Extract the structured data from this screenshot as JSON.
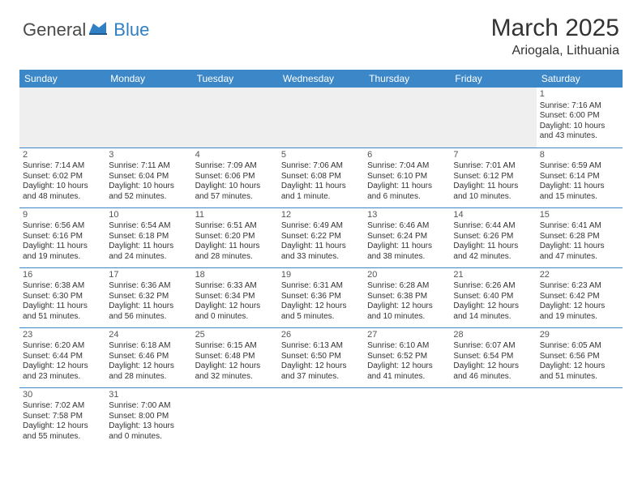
{
  "logo": {
    "general": "General",
    "blue": "Blue"
  },
  "title": "March 2025",
  "location": "Ariogala, Lithuania",
  "colors": {
    "header_bg": "#3b87c8",
    "header_text": "#ffffff",
    "blank_bg": "#efefef",
    "border": "#3b87c8",
    "logo_blue": "#2f7fc5",
    "text": "#333333"
  },
  "weekdays": [
    "Sunday",
    "Monday",
    "Tuesday",
    "Wednesday",
    "Thursday",
    "Friday",
    "Saturday"
  ],
  "weeks": [
    [
      {
        "blank": true
      },
      {
        "blank": true
      },
      {
        "blank": true
      },
      {
        "blank": true
      },
      {
        "blank": true
      },
      {
        "blank": true
      },
      {
        "day": "1",
        "sunrise": "Sunrise: 7:16 AM",
        "sunset": "Sunset: 6:00 PM",
        "daylight": "Daylight: 10 hours and 43 minutes."
      }
    ],
    [
      {
        "day": "2",
        "sunrise": "Sunrise: 7:14 AM",
        "sunset": "Sunset: 6:02 PM",
        "daylight": "Daylight: 10 hours and 48 minutes."
      },
      {
        "day": "3",
        "sunrise": "Sunrise: 7:11 AM",
        "sunset": "Sunset: 6:04 PM",
        "daylight": "Daylight: 10 hours and 52 minutes."
      },
      {
        "day": "4",
        "sunrise": "Sunrise: 7:09 AM",
        "sunset": "Sunset: 6:06 PM",
        "daylight": "Daylight: 10 hours and 57 minutes."
      },
      {
        "day": "5",
        "sunrise": "Sunrise: 7:06 AM",
        "sunset": "Sunset: 6:08 PM",
        "daylight": "Daylight: 11 hours and 1 minute."
      },
      {
        "day": "6",
        "sunrise": "Sunrise: 7:04 AM",
        "sunset": "Sunset: 6:10 PM",
        "daylight": "Daylight: 11 hours and 6 minutes."
      },
      {
        "day": "7",
        "sunrise": "Sunrise: 7:01 AM",
        "sunset": "Sunset: 6:12 PM",
        "daylight": "Daylight: 11 hours and 10 minutes."
      },
      {
        "day": "8",
        "sunrise": "Sunrise: 6:59 AM",
        "sunset": "Sunset: 6:14 PM",
        "daylight": "Daylight: 11 hours and 15 minutes."
      }
    ],
    [
      {
        "day": "9",
        "sunrise": "Sunrise: 6:56 AM",
        "sunset": "Sunset: 6:16 PM",
        "daylight": "Daylight: 11 hours and 19 minutes."
      },
      {
        "day": "10",
        "sunrise": "Sunrise: 6:54 AM",
        "sunset": "Sunset: 6:18 PM",
        "daylight": "Daylight: 11 hours and 24 minutes."
      },
      {
        "day": "11",
        "sunrise": "Sunrise: 6:51 AM",
        "sunset": "Sunset: 6:20 PM",
        "daylight": "Daylight: 11 hours and 28 minutes."
      },
      {
        "day": "12",
        "sunrise": "Sunrise: 6:49 AM",
        "sunset": "Sunset: 6:22 PM",
        "daylight": "Daylight: 11 hours and 33 minutes."
      },
      {
        "day": "13",
        "sunrise": "Sunrise: 6:46 AM",
        "sunset": "Sunset: 6:24 PM",
        "daylight": "Daylight: 11 hours and 38 minutes."
      },
      {
        "day": "14",
        "sunrise": "Sunrise: 6:44 AM",
        "sunset": "Sunset: 6:26 PM",
        "daylight": "Daylight: 11 hours and 42 minutes."
      },
      {
        "day": "15",
        "sunrise": "Sunrise: 6:41 AM",
        "sunset": "Sunset: 6:28 PM",
        "daylight": "Daylight: 11 hours and 47 minutes."
      }
    ],
    [
      {
        "day": "16",
        "sunrise": "Sunrise: 6:38 AM",
        "sunset": "Sunset: 6:30 PM",
        "daylight": "Daylight: 11 hours and 51 minutes."
      },
      {
        "day": "17",
        "sunrise": "Sunrise: 6:36 AM",
        "sunset": "Sunset: 6:32 PM",
        "daylight": "Daylight: 11 hours and 56 minutes."
      },
      {
        "day": "18",
        "sunrise": "Sunrise: 6:33 AM",
        "sunset": "Sunset: 6:34 PM",
        "daylight": "Daylight: 12 hours and 0 minutes."
      },
      {
        "day": "19",
        "sunrise": "Sunrise: 6:31 AM",
        "sunset": "Sunset: 6:36 PM",
        "daylight": "Daylight: 12 hours and 5 minutes."
      },
      {
        "day": "20",
        "sunrise": "Sunrise: 6:28 AM",
        "sunset": "Sunset: 6:38 PM",
        "daylight": "Daylight: 12 hours and 10 minutes."
      },
      {
        "day": "21",
        "sunrise": "Sunrise: 6:26 AM",
        "sunset": "Sunset: 6:40 PM",
        "daylight": "Daylight: 12 hours and 14 minutes."
      },
      {
        "day": "22",
        "sunrise": "Sunrise: 6:23 AM",
        "sunset": "Sunset: 6:42 PM",
        "daylight": "Daylight: 12 hours and 19 minutes."
      }
    ],
    [
      {
        "day": "23",
        "sunrise": "Sunrise: 6:20 AM",
        "sunset": "Sunset: 6:44 PM",
        "daylight": "Daylight: 12 hours and 23 minutes."
      },
      {
        "day": "24",
        "sunrise": "Sunrise: 6:18 AM",
        "sunset": "Sunset: 6:46 PM",
        "daylight": "Daylight: 12 hours and 28 minutes."
      },
      {
        "day": "25",
        "sunrise": "Sunrise: 6:15 AM",
        "sunset": "Sunset: 6:48 PM",
        "daylight": "Daylight: 12 hours and 32 minutes."
      },
      {
        "day": "26",
        "sunrise": "Sunrise: 6:13 AM",
        "sunset": "Sunset: 6:50 PM",
        "daylight": "Daylight: 12 hours and 37 minutes."
      },
      {
        "day": "27",
        "sunrise": "Sunrise: 6:10 AM",
        "sunset": "Sunset: 6:52 PM",
        "daylight": "Daylight: 12 hours and 41 minutes."
      },
      {
        "day": "28",
        "sunrise": "Sunrise: 6:07 AM",
        "sunset": "Sunset: 6:54 PM",
        "daylight": "Daylight: 12 hours and 46 minutes."
      },
      {
        "day": "29",
        "sunrise": "Sunrise: 6:05 AM",
        "sunset": "Sunset: 6:56 PM",
        "daylight": "Daylight: 12 hours and 51 minutes."
      }
    ],
    [
      {
        "day": "30",
        "sunrise": "Sunrise: 7:02 AM",
        "sunset": "Sunset: 7:58 PM",
        "daylight": "Daylight: 12 hours and 55 minutes."
      },
      {
        "day": "31",
        "sunrise": "Sunrise: 7:00 AM",
        "sunset": "Sunset: 8:00 PM",
        "daylight": "Daylight: 13 hours and 0 minutes."
      },
      {
        "blank": true
      },
      {
        "blank": true
      },
      {
        "blank": true
      },
      {
        "blank": true
      },
      {
        "blank": true
      }
    ]
  ]
}
